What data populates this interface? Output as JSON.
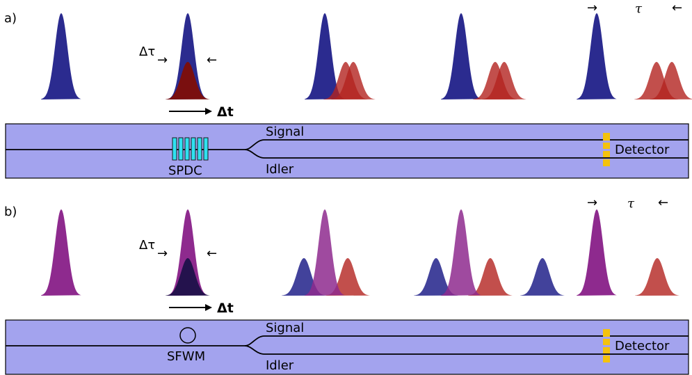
{
  "panel_a": {
    "label": "a)",
    "delta_tau": "Δτ",
    "tau": "τ",
    "arrow_right": "→",
    "arrow_left": "←",
    "delta_t": "Δt",
    "source": "SPDC",
    "signal": "Signal",
    "idler": "Idler",
    "detector": "Detector"
  },
  "panel_b": {
    "label": "b)",
    "delta_tau": "Δτ",
    "tau": "τ",
    "arrow_right": "→",
    "arrow_left": "←",
    "delta_t": "Δt",
    "source": "SFWM",
    "signal": "Signal",
    "idler": "Idler",
    "detector": "Detector"
  },
  "colors": {
    "pump_a": "#2b2b8f",
    "pump_b": "#8e2a8e",
    "red": "#b3231f",
    "dark_red": "#7a0f0f",
    "blue": "#2d2d90",
    "dark_purple": "#24124d",
    "chip": "#a3a3ee",
    "crystal": "#2fe1f0",
    "detector": "#f4c20d"
  }
}
